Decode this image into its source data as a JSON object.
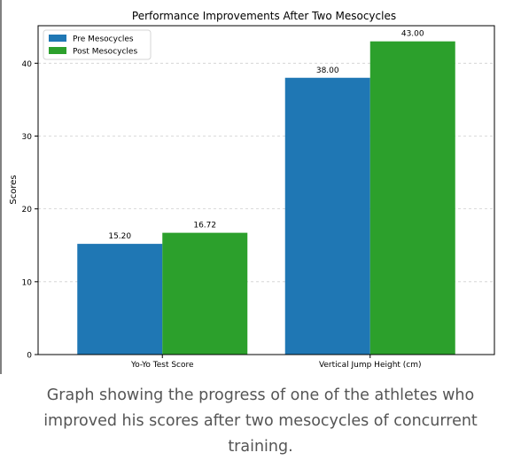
{
  "chart_data": {
    "type": "bar",
    "title": "Performance Improvements After Two Mesocycles",
    "xlabel": "",
    "ylabel": "Scores",
    "categories": [
      "Yo-Yo Test Score",
      "Vertical Jump Height (cm)"
    ],
    "series": [
      {
        "name": "Pre Mesocycles",
        "values": [
          15.2,
          38.0
        ],
        "value_labels": [
          "15.20",
          "38.00"
        ],
        "color": "#1f77b4"
      },
      {
        "name": "Post Mesocycles",
        "values": [
          16.72,
          43.0
        ],
        "value_labels": [
          "16.72",
          "43.00"
        ],
        "color": "#2ca02c"
      }
    ],
    "ylim": [
      0,
      45.15
    ],
    "yticks": [
      0,
      10,
      20,
      30,
      40
    ],
    "grid": "horizontal-dashed",
    "legend_position": "upper-left"
  },
  "caption": "Graph showing the progress of one of the athletes who improved his scores after two mesocycles of concurrent training."
}
